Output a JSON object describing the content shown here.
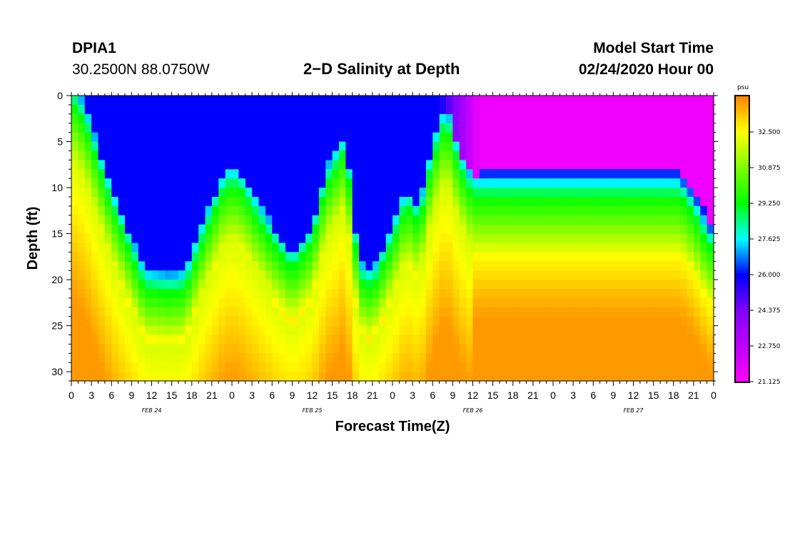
{
  "header": {
    "station_id": "DPIA1",
    "coordinates": "30.2500N 88.0750W",
    "title": "2−D Salinity at Depth",
    "model_label": "Model Start Time",
    "model_time": "02/24/2020 Hour 00"
  },
  "chart_data": {
    "type": "heatmap",
    "title": "2−D Salinity at Depth",
    "xlabel": "Forecast Time(Z)",
    "ylabel": "Depth (ft)",
    "x_unit": "hours since 02/24/2020 00Z",
    "xlim": [
      0,
      96
    ],
    "ylim": [
      0,
      31
    ],
    "x_ticks": [
      0,
      3,
      6,
      9,
      12,
      15,
      18,
      21,
      24,
      27,
      30,
      33,
      36,
      39,
      42,
      45,
      48,
      51,
      54,
      57,
      60,
      63,
      66,
      69,
      72,
      75,
      78,
      81,
      84,
      87,
      90,
      93,
      96
    ],
    "x_tick_labels": [
      "0",
      "3",
      "6",
      "9",
      "12",
      "15",
      "18",
      "21",
      "0",
      "3",
      "6",
      "9",
      "12",
      "15",
      "18",
      "21",
      "0",
      "3",
      "6",
      "9",
      "12",
      "15",
      "18",
      "21",
      "0",
      "3",
      "6",
      "9",
      "12",
      "15",
      "18",
      "21",
      "0"
    ],
    "day_labels": [
      {
        "hour": 12,
        "label": "FEB 24"
      },
      {
        "hour": 36,
        "label": "FEB 25"
      },
      {
        "hour": 60,
        "label": "FEB 26"
      },
      {
        "hour": 84,
        "label": "FEB 27"
      }
    ],
    "y_ticks": [
      0,
      5,
      10,
      15,
      20,
      25,
      30
    ],
    "y_tick_labels": [
      "0",
      "5",
      "10",
      "15",
      "20",
      "25",
      "30"
    ],
    "colorbar": {
      "unit": "psu",
      "min": 21.125,
      "max": 34.125,
      "tick_values": [
        21.125,
        22.75,
        24.375,
        26.0,
        27.625,
        29.25,
        30.875,
        32.5
      ],
      "tick_labels": [
        "21.125",
        "22.750",
        "24.375",
        "26.000",
        "27.625",
        "29.250",
        "30.875",
        "32.500"
      ]
    },
    "approx_halocline": {
      "comment": "Approximate depth (ft) of the fresh upper-layer boundary by forecast hour",
      "hours": [
        0,
        2,
        6,
        11,
        15,
        17,
        20,
        23,
        25,
        30,
        33,
        36,
        38,
        41,
        43,
        45,
        48,
        50,
        52,
        54,
        56,
        58,
        60,
        66,
        72,
        78,
        84,
        88,
        91,
        93,
        95,
        96
      ],
      "depth_ft": [
        0.5,
        3,
        12,
        21,
        21.5,
        21,
        15,
        10,
        10,
        16,
        19,
        16,
        10,
        6,
        20,
        21,
        16,
        12,
        14,
        7,
        3,
        8,
        11,
        11,
        11,
        11,
        11,
        11,
        11,
        13,
        16,
        17
      ]
    },
    "fresh_core_salinity": 26.0,
    "surface_min_salinity": 21.5,
    "deep_max_salinity": 33.8
  }
}
